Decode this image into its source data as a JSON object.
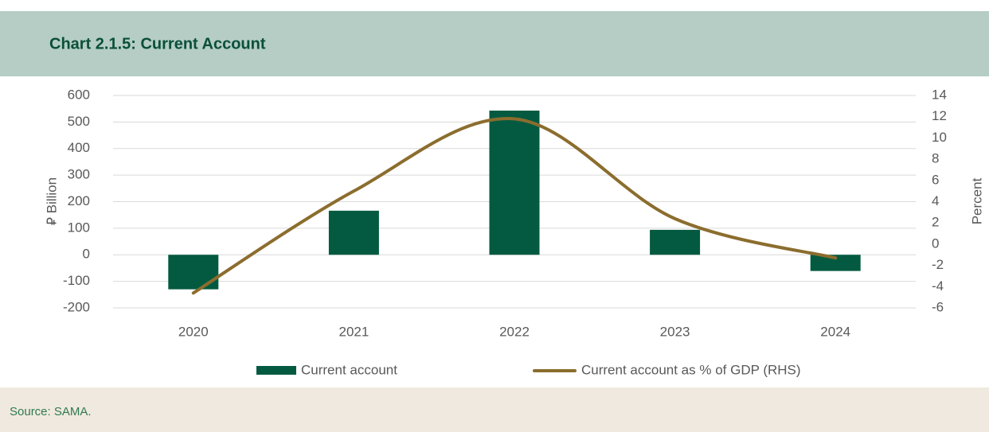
{
  "chart_data": {
    "type": "bar_line",
    "title": "Chart 2.1.5: Current Account",
    "source": "Source: SAMA.",
    "ylabel": "⃁ Billion",
    "y2label": "Percent",
    "categories": [
      "2020",
      "2021",
      "2022",
      "2023",
      "2024"
    ],
    "series": [
      {
        "name": "Current account",
        "type": "bar",
        "color": "#045a40",
        "values": [
          -130,
          166,
          543,
          94,
          -61
        ]
      },
      {
        "name": "Current account as % of GDP (RHS)",
        "type": "line",
        "axis": "y2",
        "color": "#8b6d2e",
        "values": [
          -4.6,
          5.0,
          11.8,
          2.4,
          -1.3
        ]
      }
    ],
    "ylim": [
      -200,
      600
    ],
    "yticks": [
      -200,
      -100,
      0,
      100,
      200,
      300,
      400,
      500,
      600
    ],
    "y2lim": [
      -6,
      14
    ],
    "y2ticks": [
      -6,
      -4,
      -2,
      0,
      2,
      4,
      6,
      8,
      10,
      12,
      14
    ],
    "grid": true,
    "legend": "bottom"
  }
}
